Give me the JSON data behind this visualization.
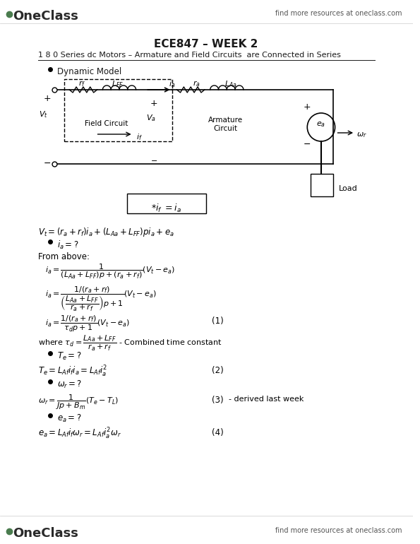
{
  "bg_color": "#ffffff",
  "top_logo_text": "OneClass",
  "top_logo_color": "#4a7c4e",
  "top_right_text": "find more resources at oneclass.com",
  "bottom_logo_text": "OneClass",
  "bottom_right_text": "find more resources at oneclass.com",
  "title": "ECE847 – WEEK 2",
  "section_title": "1 8 0 Series dc Motors – Armature and Field Circuits  are Connected in Series",
  "bullet1": "Dynamic Model",
  "note_box": "$*i_f \\ = i_a$",
  "eq1_num": "(1)",
  "eq2_num": "(2)",
  "eq3_num": "(3)",
  "eq4_num": "(4)",
  "eq3_note": "- derived last week",
  "from_above": "From above:"
}
